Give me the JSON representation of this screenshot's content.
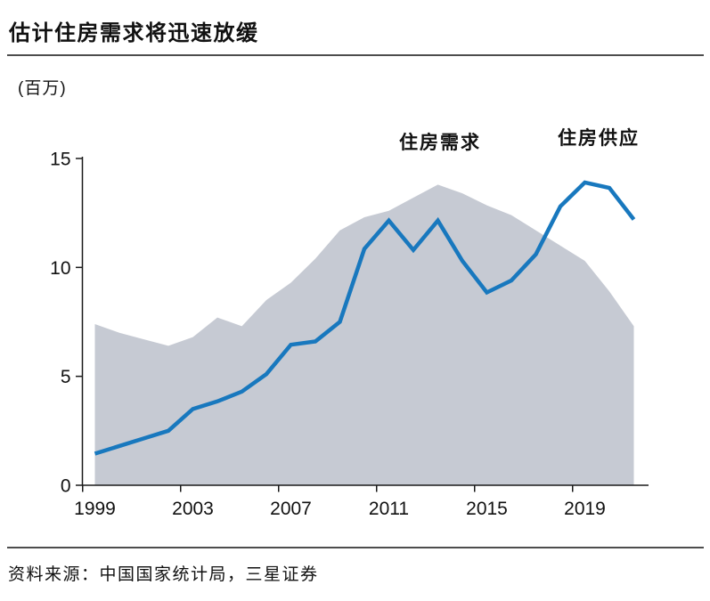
{
  "header": {
    "title": "估计住房需求将迅速放缓"
  },
  "footer": {
    "source": "资料来源：中国国家统计局，三星证券"
  },
  "chart_data": {
    "type": "line+area",
    "title": "估计住房需求将迅速放缓",
    "unit_label": "(百万)",
    "ylabel": "百万",
    "x": [
      1999,
      2000,
      2001,
      2002,
      2003,
      2004,
      2005,
      2006,
      2007,
      2008,
      2009,
      2010,
      2011,
      2012,
      2013,
      2014,
      2015,
      2016,
      2017,
      2018,
      2019,
      2020,
      2021
    ],
    "series": [
      {
        "name": "住房供应",
        "type": "area",
        "color": "#c6cad3",
        "values": [
          7.4,
          7.0,
          6.7,
          6.4,
          6.8,
          7.7,
          7.3,
          8.5,
          9.3,
          10.4,
          11.7,
          12.3,
          12.6,
          13.2,
          13.8,
          13.4,
          12.85,
          12.4,
          11.7,
          11.0,
          10.3,
          8.9,
          7.3
        ]
      },
      {
        "name": "住房需求",
        "type": "line",
        "color": "#1878be",
        "values": [
          1.45,
          1.8,
          2.15,
          2.5,
          3.5,
          3.85,
          4.3,
          5.1,
          6.45,
          6.6,
          7.5,
          10.85,
          12.15,
          10.8,
          12.15,
          10.3,
          8.85,
          9.4,
          10.6,
          12.8,
          13.9,
          13.65,
          12.2
        ]
      }
    ],
    "x_ticks": [
      1999,
      2003,
      2007,
      2011,
      2015,
      2019
    ],
    "y_ticks": [
      0,
      5,
      10,
      15
    ],
    "ylim": [
      0,
      15
    ],
    "grid": false,
    "legend_position": "labels-above-chart",
    "axis_color": "#1a1a1a",
    "tick_label_color": "#111111"
  }
}
